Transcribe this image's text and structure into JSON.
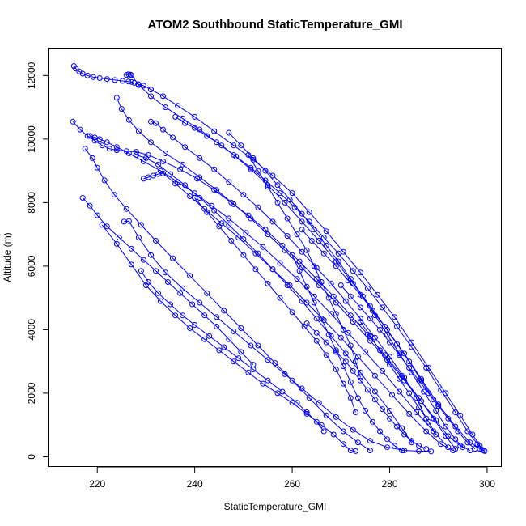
{
  "chart_data": {
    "type": "scatter",
    "title": "ATOM2 Southbound StaticTemperature_GMI",
    "xlabel": "StaticTemperature_GMI",
    "ylabel": "Altitude (m)",
    "xlim": [
      210,
      303
    ],
    "ylim": [
      -320,
      12850
    ],
    "x_ticks": [
      220,
      240,
      260,
      280,
      300
    ],
    "y_ticks": [
      0,
      2000,
      4000,
      6000,
      8000,
      10000,
      12000
    ],
    "x_tick_labels": [
      "220",
      "240",
      "260",
      "280",
      "300"
    ],
    "y_tick_labels": [
      "0",
      "2000",
      "4000",
      "6000",
      "8000",
      "10000",
      "12000"
    ],
    "grid": false,
    "marker": "open-circle",
    "connected": true,
    "colors": {
      "series": "#0000ff",
      "axes": "#000000",
      "background": "#ffffff"
    },
    "series": [
      {
        "x": [
          215.2,
          215.6,
          216.3,
          217.0,
          218.0,
          219.2,
          220.5,
          222.0,
          223.6,
          225.2,
          226.4,
          227.0,
          227.6,
          228.4,
          229.5,
          231.0,
          233.5,
          236.5,
          240.0,
          244.0,
          248.0,
          252.0,
          256.0,
          260.0,
          263.5,
          267.0,
          270.5,
          274.0,
          277.5,
          281.0,
          284.5,
          288.0,
          291.5,
          294.5,
          297.0,
          298.5,
          299.3
        ],
        "y": [
          12300,
          12220,
          12130,
          12060,
          12000,
          11950,
          11920,
          11890,
          11860,
          11830,
          11810,
          11800,
          11770,
          11730,
          11680,
          11560,
          11350,
          11050,
          10700,
          10250,
          9800,
          9350,
          8850,
          8300,
          7700,
          7100,
          6450,
          5800,
          5100,
          4400,
          3600,
          2800,
          2000,
          1300,
          700,
          350,
          200
        ]
      },
      {
        "x": [
          226.0,
          226.4,
          226.8,
          227.0,
          228.5,
          231.0,
          234.0,
          237.5,
          241.0,
          244.5,
          248.0,
          251.5,
          255.0,
          258.5,
          262.0,
          265.5,
          269.0,
          272.5,
          276.0,
          279.5,
          283.0,
          286.5,
          290.0,
          293.5,
          296.5,
          298.5,
          299.5
        ],
        "y": [
          12020,
          12040,
          12030,
          12010,
          11700,
          11350,
          11000,
          10650,
          10300,
          9900,
          9500,
          9050,
          8550,
          8000,
          7400,
          6800,
          6150,
          5450,
          4750,
          4000,
          3250,
          2450,
          1650,
          950,
          450,
          250,
          180
        ]
      },
      {
        "x": [
          215.0,
          216.5,
          218.0,
          219.5,
          221.0,
          222.5,
          224.0,
          226.0,
          228.0,
          230.5,
          233.5,
          237.0,
          240.5,
          244.0,
          247.5,
          251.0,
          254.5,
          258.0,
          261.5,
          265.0,
          268.5,
          272.0,
          275.5,
          279.0,
          282.5,
          286.0,
          289.0,
          291.5,
          293.5
        ],
        "y": [
          10550,
          10300,
          10100,
          9950,
          9800,
          9700,
          9650,
          9620,
          9600,
          9500,
          9300,
          9050,
          8750,
          8400,
          8000,
          7600,
          7150,
          6650,
          6150,
          5600,
          5050,
          4450,
          3850,
          3200,
          2550,
          1850,
          1200,
          650,
          250
        ]
      },
      {
        "x": [
          229.5,
          230.5,
          231.5,
          232.5,
          233.5,
          236.0,
          239.0,
          242.0,
          245.5,
          249.0,
          252.5,
          256.0,
          259.5,
          263.0,
          266.5,
          270.0,
          273.5,
          277.0,
          280.5,
          284.0,
          287.5,
          290.5,
          293.0
        ],
        "y": [
          8750,
          8800,
          8850,
          8900,
          8920,
          8600,
          8200,
          7800,
          7350,
          6900,
          6400,
          5900,
          5400,
          4850,
          4300,
          3750,
          3150,
          2550,
          1950,
          1350,
          800,
          400,
          200
        ]
      },
      {
        "x": [
          217.5,
          219.0,
          220.0,
          221.5,
          223.5,
          226.0,
          229.0,
          232.0,
          235.5,
          239.0,
          242.5,
          246.0,
          249.5,
          253.0,
          256.5,
          260.0,
          263.5,
          267.0,
          270.5,
          273.5,
          276.0
        ],
        "y": [
          9700,
          9400,
          9100,
          8700,
          8250,
          7800,
          7300,
          6800,
          6250,
          5700,
          5150,
          4600,
          4050,
          3500,
          2950,
          2400,
          1850,
          1300,
          800,
          450,
          200
        ]
      },
      {
        "x": [
          221.0,
          224.0,
          227.0,
          230.0,
          233.0,
          236.0,
          239.0,
          242.0,
          245.0,
          248.0,
          251.0,
          254.0,
          257.0,
          260.0,
          263.0,
          266.0,
          268.5,
          270.5,
          272.0,
          273.0
        ],
        "y": [
          7300,
          6700,
          6050,
          5400,
          4900,
          4450,
          4050,
          3700,
          3350,
          3000,
          2650,
          2300,
          2000,
          1700,
          1350,
          1000,
          700,
          400,
          200,
          180
        ]
      },
      {
        "x": [
          225.5,
          226.5,
          228.5,
          231.0,
          234.0,
          237.5,
          241.0,
          244.5,
          248.0,
          251.5,
          255.0,
          258.5,
          262.0,
          265.5,
          269.0,
          272.5,
          276.0,
          279.5,
          283.0,
          286.0,
          288.5
        ],
        "y": [
          7400,
          7420,
          6900,
          6350,
          5800,
          5300,
          4850,
          4400,
          3950,
          3500,
          3050,
          2600,
          2150,
          1700,
          1250,
          850,
          500,
          300,
          200,
          180,
          170
        ]
      },
      {
        "x": [
          224.0,
          225.0,
          226.5,
          228.5,
          231.0,
          234.0,
          237.5,
          241.0,
          244.5,
          248.0,
          251.5,
          255.0,
          258.5,
          262.0,
          265.5,
          269.0,
          272.5,
          276.0,
          279.5,
          283.0,
          286.5,
          289.5,
          292.0,
          294.5,
          296.5
        ],
        "y": [
          11300,
          10950,
          10600,
          10250,
          9900,
          9550,
          9200,
          8800,
          8400,
          7950,
          7500,
          7000,
          6500,
          5950,
          5400,
          4850,
          4250,
          3650,
          3050,
          2400,
          1750,
          1150,
          650,
          350,
          200
        ]
      },
      {
        "x": [
          218.5,
          219.5,
          220.5,
          222.0,
          224.0,
          226.5,
          229.5,
          233.0,
          236.5,
          240.0,
          243.5,
          247.0,
          250.5,
          254.0,
          257.5,
          261.0,
          264.5,
          268.0,
          271.5,
          275.0,
          278.5,
          282.0,
          285.5,
          289.0,
          292.0
        ],
        "y": [
          10100,
          10050,
          10000,
          9900,
          9750,
          9550,
          9300,
          9000,
          8650,
          8300,
          7900,
          7500,
          7050,
          6600,
          6100,
          5600,
          5050,
          4500,
          3900,
          3300,
          2700,
          2050,
          1400,
          800,
          300
        ]
      },
      {
        "x": [
          231.0,
          232.0,
          233.5,
          235.5,
          238.0,
          241.0,
          244.0,
          247.0,
          250.0,
          253.0,
          256.0,
          259.0,
          262.0,
          265.0,
          268.0,
          271.0,
          274.0,
          277.0,
          280.0,
          283.0,
          285.5,
          287.5
        ],
        "y": [
          10550,
          10500,
          10300,
          10050,
          9750,
          9400,
          9050,
          8650,
          8250,
          7850,
          7400,
          6950,
          6450,
          5950,
          5450,
          4900,
          4350,
          3750,
          3150,
          2500,
          1850,
          1200
        ]
      },
      {
        "x": [
          236.0,
          238.0,
          240.0,
          242.5,
          245.5,
          248.5,
          251.5,
          254.5,
          257.5,
          260.5,
          263.5,
          266.5,
          269.5,
          272.5,
          275.5,
          278.5,
          281.5,
          284.5,
          287.5,
          290.5,
          293.5,
          296.0,
          298.0,
          299.0
        ],
        "y": [
          10700,
          10500,
          10350,
          10100,
          9800,
          9450,
          9100,
          8700,
          8300,
          7850,
          7400,
          6900,
          6400,
          5850,
          5300,
          4700,
          4100,
          3450,
          2800,
          2100,
          1400,
          800,
          400,
          220
        ]
      },
      {
        "x": [
          228.0,
          230.0,
          232.5,
          235.0,
          238.0,
          241.0,
          244.0,
          247.0,
          250.0,
          253.0,
          256.0,
          259.0,
          262.0,
          265.0,
          268.0,
          271.0,
          274.0,
          277.0,
          280.0,
          282.5,
          284.5
        ],
        "y": [
          9500,
          9400,
          9200,
          8900,
          8550,
          8150,
          7750,
          7300,
          6850,
          6400,
          5900,
          5400,
          4900,
          4350,
          3800,
          3250,
          2650,
          2050,
          1450,
          900,
          450
        ]
      },
      {
        "x": [
          229.0,
          230.5,
          232.5,
          235.0,
          237.5,
          240.0,
          243.0,
          246.0,
          249.0,
          252.0,
          255.0,
          258.0,
          261.0,
          263.0,
          265.0,
          266.5
        ],
        "y": [
          5850,
          5500,
          5150,
          4800,
          4450,
          4150,
          3800,
          3450,
          3100,
          2750,
          2400,
          2050,
          1700,
          1400,
          1100,
          800
        ]
      },
      {
        "x": [
          260.0,
          261.5,
          263.0,
          264.5,
          266.0,
          267.5,
          269.0,
          270.5,
          272.0,
          273.5,
          275.0,
          276.5,
          278.0,
          279.5,
          281.0,
          282.5
        ],
        "y": [
          6350,
          5850,
          5350,
          4850,
          4350,
          3850,
          3350,
          2850,
          2350,
          1850,
          1450,
          1100,
          800,
          550,
          350,
          200
        ]
      },
      {
        "x": [
          251.0,
          253.0,
          255.0,
          257.0,
          259.0,
          261.0,
          263.0,
          264.5,
          266.0,
          267.5,
          269.0,
          270.5,
          272.0,
          273.0,
          274.0
        ],
        "y": [
          9500,
          9000,
          8500,
          8000,
          7500,
          7000,
          6500,
          6000,
          5500,
          5000,
          4500,
          4000,
          3500,
          3000,
          2500
        ]
      },
      {
        "x": [
          247.0,
          249.5,
          252.0,
          254.5,
          257.0,
          259.5,
          262.0,
          264.5,
          267.0,
          269.5,
          272.0,
          274.5,
          277.0,
          279.5,
          282.0,
          284.5,
          287.0,
          289.5,
          291.5,
          293.5,
          295.0
        ],
        "y": [
          10200,
          9800,
          9400,
          9000,
          8550,
          8100,
          7650,
          7150,
          6650,
          6150,
          5600,
          5050,
          4450,
          3850,
          3250,
          2650,
          2050,
          1450,
          950,
          550,
          300
        ]
      },
      {
        "x": [
          263.0,
          265.0,
          267.0,
          269.0,
          271.0,
          272.5,
          274.0,
          275.5,
          277.0,
          278.5,
          280.0,
          281.5,
          283.0,
          284.5,
          286.0,
          287.5
        ],
        "y": [
          4200,
          3900,
          3600,
          3300,
          3000,
          2700,
          2400,
          2100,
          1800,
          1500,
          1200,
          950,
          700,
          500,
          350,
          250
        ]
      },
      {
        "x": [
          270.0,
          272.0,
          274.0,
          276.0,
          278.0,
          280.0,
          282.0,
          284.0,
          286.0,
          288.0,
          290.0,
          292.0,
          294.0,
          296.0,
          297.5
        ],
        "y": [
          5400,
          5050,
          4700,
          4350,
          4000,
          3600,
          3200,
          2800,
          2400,
          2000,
          1600,
          1200,
          800,
          450,
          250
        ]
      },
      {
        "x": [
          217.0,
          218.5,
          220.0,
          222.0,
          224.5,
          227.0,
          229.5,
          232.0,
          234.5,
          237.0,
          239.5,
          242.0,
          244.5,
          247.0,
          249.5,
          252.0
        ],
        "y": [
          8150,
          7900,
          7600,
          7250,
          6900,
          6550,
          6200,
          5850,
          5500,
          5150,
          4800,
          4450,
          4100,
          3700,
          3300,
          2900
        ]
      },
      {
        "x": [
          240.0,
          242.5,
          245.0,
          247.5,
          250.0,
          252.5,
          255.0,
          257.5,
          260.0,
          262.5,
          265.0,
          267.0,
          269.0,
          270.5,
          272.0,
          273.0
        ],
        "y": [
          8150,
          7700,
          7250,
          6800,
          6350,
          5900,
          5450,
          5000,
          4550,
          4100,
          3650,
          3200,
          2750,
          2300,
          1850,
          1400
        ]
      },
      {
        "x": [
          274.0,
          276.0,
          278.0,
          280.0,
          282.0,
          284.0,
          286.0,
          288.0,
          289.5
        ],
        "y": [
          4250,
          3800,
          3350,
          2900,
          2450,
          2000,
          1550,
          1100,
          700
        ]
      },
      {
        "x": [
          262.0,
          264.0,
          266.5,
          269.0,
          271.5,
          274.0,
          276.5,
          279.0,
          281.5,
          284.0,
          286.5,
          289.0
        ],
        "y": [
          7150,
          6800,
          6400,
          6000,
          5550,
          5100,
          4600,
          4100,
          3550,
          3000,
          2400,
          1800
        ]
      }
    ]
  }
}
